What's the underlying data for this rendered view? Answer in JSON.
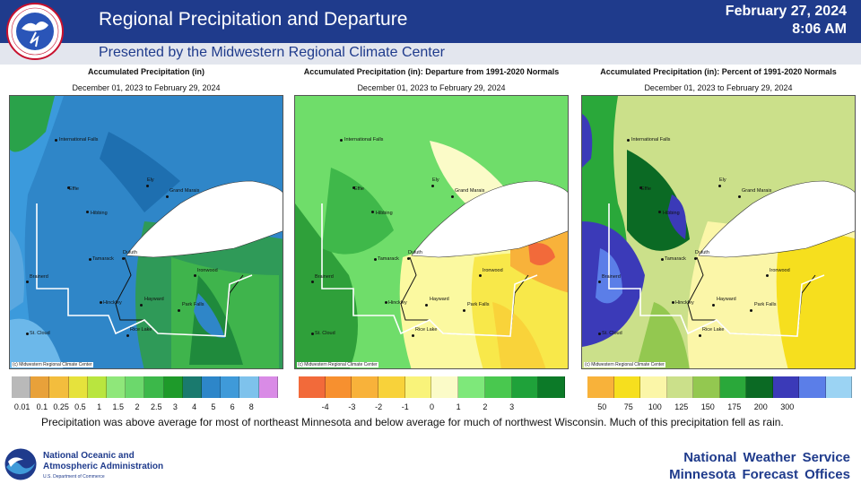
{
  "header": {
    "title": "Regional Precipitation and Departure",
    "subtitle": "Presented by the Midwestern Regional Climate Center",
    "date": "February 27, 2024",
    "time": "8:06 AM",
    "bg_color": "#1f3b8c"
  },
  "panels": [
    {
      "title": "Accumulated Precipitation (in)",
      "date_range": "December 01, 2023 to February 29, 2024",
      "credit": "(c) Midwestern Regional Climate Center",
      "legend_colors": [
        "#b9b9b9",
        "#e8a13a",
        "#f3bd3d",
        "#e6e23c",
        "#b9e53f",
        "#8fe77a",
        "#6cd86c",
        "#3cb84a",
        "#1e9a2a",
        "#1a7a6e",
        "#2d86c9",
        "#3f9ad9",
        "#7ec2ec",
        "#d98be6"
      ],
      "legend_labels": [
        "0.01",
        "0.1",
        "0.25",
        "0.5",
        "1",
        "1.5",
        "2",
        "2.5",
        "3",
        "4",
        "5",
        "6",
        "8"
      ]
    },
    {
      "title": "Accumulated Precipitation (in): Departure from 1991-2020 Normals",
      "date_range": "December 01, 2023 to February 29, 2024",
      "credit": "(c) Midwestern Regional Climate Center",
      "legend_colors": [
        "#f26a3a",
        "#f7902f",
        "#f8b23a",
        "#f8d23a",
        "#f9f37a",
        "#fbfbc8",
        "#7ee87a",
        "#49c84f",
        "#1fa23a",
        "#0c7a28"
      ],
      "legend_labels": [
        "-4",
        "-3",
        "-2",
        "-1",
        "0",
        "1",
        "2",
        "3"
      ]
    },
    {
      "title": "Accumulated Precipitation (in): Percent of 1991-2020 Normals",
      "date_range": "December 01, 2023 to February 29, 2024",
      "credit": "(c) Midwestern Regional Climate Center",
      "legend_colors": [
        "#f8b23a",
        "#f6df1e",
        "#fbf6a8",
        "#cbe08a",
        "#93c850",
        "#2aa83a",
        "#0b6a24",
        "#3b3ab8",
        "#5b7ee8",
        "#9bd3f3"
      ],
      "legend_labels": [
        "50",
        "75",
        "100",
        "125",
        "150",
        "175",
        "200",
        "300"
      ]
    }
  ],
  "cities": [
    {
      "name": "International Falls"
    },
    {
      "name": "Effie"
    },
    {
      "name": "Ely"
    },
    {
      "name": "Grand Marais"
    },
    {
      "name": "Hibbing"
    },
    {
      "name": "Duluth"
    },
    {
      "name": "Tamarack"
    },
    {
      "name": "Brainerd"
    },
    {
      "name": "Ironwood"
    },
    {
      "name": "Hinckley"
    },
    {
      "name": "Hayward"
    },
    {
      "name": "Park Falls"
    },
    {
      "name": "St. Cloud"
    },
    {
      "name": "Rice Lake"
    }
  ],
  "caption": "Precipitation was above average for most of northeast Minnesota and below average for much of northwest Wisconsin. Much of this precipitation fell as rain.",
  "footer": {
    "noaa_line1": "National Oceanic and",
    "noaa_line2": "Atmospheric Administration",
    "noaa_line3": "U.S. Department of Commerce",
    "nws_line1": "National Weather Service",
    "nws_line2": "Minnesota Forecast Offices"
  }
}
